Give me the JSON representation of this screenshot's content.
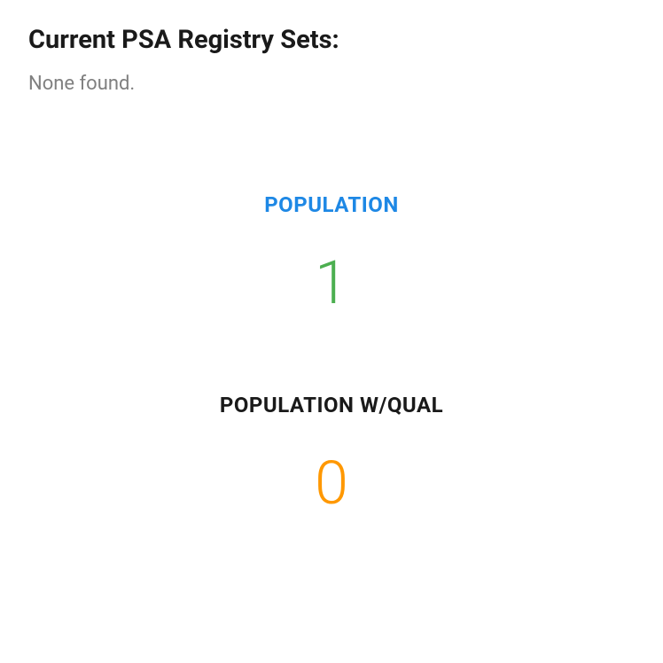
{
  "section": {
    "title": "Current PSA Registry Sets:",
    "empty_message": "None found."
  },
  "stats": [
    {
      "label": "POPULATION",
      "value": "1",
      "label_color": "#1e88e5",
      "value_color": "#4caf50"
    },
    {
      "label": "POPULATION W/QUAL",
      "value": "0",
      "label_color": "#1a1a1a",
      "value_color": "#ff9800"
    }
  ],
  "styling": {
    "background_color": "#ffffff",
    "title_fontsize": 29,
    "title_color": "#1a1a1a",
    "empty_message_fontsize": 22,
    "empty_message_color": "#808080",
    "stat_label_fontsize": 24,
    "stat_value_fontsize": 68
  }
}
